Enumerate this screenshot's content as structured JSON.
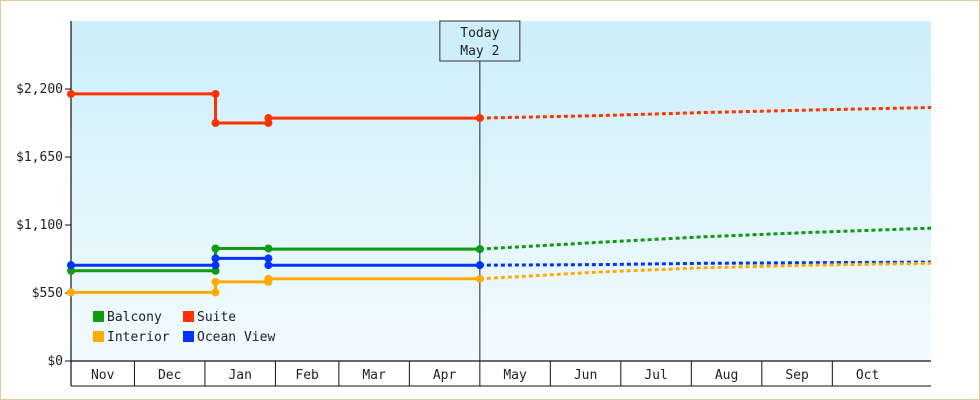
{
  "chart_data": {
    "type": "line",
    "title": "",
    "xlabel": "",
    "ylabel": "",
    "ylim": [
      0,
      2750
    ],
    "y_ticks": [
      {
        "value": 0,
        "label": "$0"
      },
      {
        "value": 550,
        "label": "$550"
      },
      {
        "value": 1100,
        "label": "$1,100"
      },
      {
        "value": 1650,
        "label": "$1,650"
      },
      {
        "value": 2200,
        "label": "$2,200"
      }
    ],
    "x_range": [
      0,
      12.2
    ],
    "months": [
      {
        "label": "Nov",
        "start": 0,
        "end": 0.9
      },
      {
        "label": "Dec",
        "start": 0.9,
        "end": 1.9
      },
      {
        "label": "Jan",
        "start": 1.9,
        "end": 2.9
      },
      {
        "label": "Feb",
        "start": 2.9,
        "end": 3.8
      },
      {
        "label": "Mar",
        "start": 3.8,
        "end": 4.8
      },
      {
        "label": "Apr",
        "start": 4.8,
        "end": 5.8
      },
      {
        "label": "May",
        "start": 5.8,
        "end": 6.8
      },
      {
        "label": "Jun",
        "start": 6.8,
        "end": 7.8
      },
      {
        "label": "Jul",
        "start": 7.8,
        "end": 8.8
      },
      {
        "label": "Aug",
        "start": 8.8,
        "end": 9.8
      },
      {
        "label": "Sep",
        "start": 9.8,
        "end": 10.8
      },
      {
        "label": "Oct",
        "start": 10.8,
        "end": 11.8
      }
    ],
    "today": {
      "x": 5.8,
      "line1": "Today",
      "line2": "May 2"
    },
    "series": [
      {
        "name": "Suite",
        "color": "#ff3300",
        "history": [
          [
            0,
            2160
          ],
          [
            2.05,
            2160
          ],
          [
            2.05,
            1925
          ],
          [
            2.8,
            1925
          ],
          [
            2.8,
            1965
          ],
          [
            5.8,
            1965
          ]
        ],
        "markers": [
          [
            0,
            2160
          ],
          [
            2.05,
            2160
          ],
          [
            2.05,
            1925
          ],
          [
            2.8,
            1925
          ],
          [
            2.8,
            1965
          ],
          [
            5.8,
            1965
          ]
        ],
        "forecast": [
          [
            5.8,
            1965
          ],
          [
            7.5,
            1985
          ],
          [
            9.0,
            2010
          ],
          [
            10.5,
            2030
          ],
          [
            12.2,
            2050
          ]
        ]
      },
      {
        "name": "Balcony",
        "color": "#119911",
        "history": [
          [
            0,
            730
          ],
          [
            2.05,
            730
          ],
          [
            2.05,
            910
          ],
          [
            2.8,
            910
          ],
          [
            2.8,
            905
          ],
          [
            5.8,
            905
          ]
        ],
        "markers": [
          [
            0,
            730
          ],
          [
            2.05,
            730
          ],
          [
            2.05,
            910
          ],
          [
            2.8,
            910
          ],
          [
            5.8,
            905
          ]
        ],
        "forecast": [
          [
            5.8,
            905
          ],
          [
            7.5,
            960
          ],
          [
            9.0,
            1005
          ],
          [
            10.5,
            1040
          ],
          [
            12.2,
            1075
          ]
        ]
      },
      {
        "name": "Ocean View",
        "color": "#0033ff",
        "history": [
          [
            0,
            775
          ],
          [
            2.05,
            775
          ],
          [
            2.05,
            830
          ],
          [
            2.8,
            830
          ],
          [
            2.8,
            775
          ],
          [
            5.8,
            775
          ]
        ],
        "markers": [
          [
            0,
            775
          ],
          [
            2.05,
            775
          ],
          [
            2.05,
            830
          ],
          [
            2.8,
            830
          ],
          [
            2.8,
            775
          ],
          [
            5.8,
            775
          ]
        ],
        "forecast": [
          [
            5.8,
            775
          ],
          [
            7.5,
            780
          ],
          [
            9.0,
            790
          ],
          [
            10.5,
            795
          ],
          [
            12.2,
            800
          ]
        ]
      },
      {
        "name": "Interior",
        "color": "#ffaa00",
        "history": [
          [
            0,
            555
          ],
          [
            2.05,
            555
          ],
          [
            2.05,
            640
          ],
          [
            2.8,
            640
          ],
          [
            2.8,
            665
          ],
          [
            5.8,
            665
          ]
        ],
        "markers": [
          [
            0,
            555
          ],
          [
            2.05,
            555
          ],
          [
            2.05,
            640
          ],
          [
            2.8,
            640
          ],
          [
            2.8,
            665
          ],
          [
            5.8,
            665
          ]
        ],
        "forecast": [
          [
            5.8,
            665
          ],
          [
            7.5,
            720
          ],
          [
            9.0,
            755
          ],
          [
            10.5,
            775
          ],
          [
            12.2,
            790
          ]
        ]
      }
    ],
    "legend": {
      "placement": "bottom-left",
      "rows": [
        [
          {
            "label": "Balcony",
            "color": "#119911"
          },
          {
            "label": "Suite",
            "color": "#ff3300"
          }
        ],
        [
          {
            "label": "Interior",
            "color": "#ffaa00"
          },
          {
            "label": "Ocean View",
            "color": "#0033ff"
          }
        ]
      ]
    },
    "background": {
      "top": "#cdeefa",
      "bottom": "#f2fbff"
    },
    "grid": false
  }
}
